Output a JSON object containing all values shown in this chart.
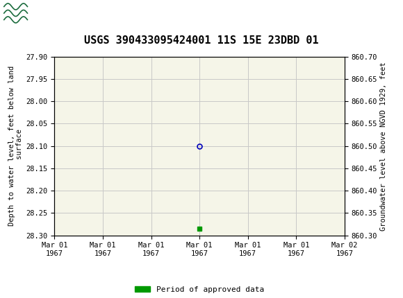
{
  "title": "USGS 390433095424001 11S 15E 23DBD 01",
  "title_fontsize": 11,
  "header_bg_color": "#1a6b3c",
  "page_bg_color": "#ffffff",
  "plot_bg_color": "#f5f5e8",
  "grid_color": "#c8c8c8",
  "left_ylabel": "Depth to water level, feet below land\n surface",
  "right_ylabel": "Groundwater level above NGVD 1929, feet",
  "ylim_left": [
    27.9,
    28.3
  ],
  "ylim_right": [
    860.3,
    860.7
  ],
  "yticks_left": [
    27.9,
    27.95,
    28.0,
    28.05,
    28.1,
    28.15,
    28.2,
    28.25,
    28.3
  ],
  "yticks_right": [
    860.3,
    860.35,
    860.4,
    860.45,
    860.5,
    860.55,
    860.6,
    860.65,
    860.7
  ],
  "xtick_positions": [
    0,
    1,
    2,
    3,
    4,
    5,
    6
  ],
  "xtick_labels": [
    "Mar 01\n1967",
    "Mar 01\n1967",
    "Mar 01\n1967",
    "Mar 01\n1967",
    "Mar 01\n1967",
    "Mar 01\n1967",
    "Mar 02\n1967"
  ],
  "xlim": [
    0,
    6
  ],
  "data_point_x": 3.0,
  "data_point_y": 28.1,
  "data_point_color": "#0000bb",
  "data_point_size": 5,
  "green_sq_x": 3.0,
  "green_sq_y": 28.285,
  "green_sq_color": "#009900",
  "green_sq_size": 4,
  "legend_label": "Period of approved data",
  "legend_color": "#009900",
  "tick_labelsize": 7.5,
  "ylabel_fontsize": 7.5,
  "header_text": "USGS",
  "header_fontsize": 12
}
